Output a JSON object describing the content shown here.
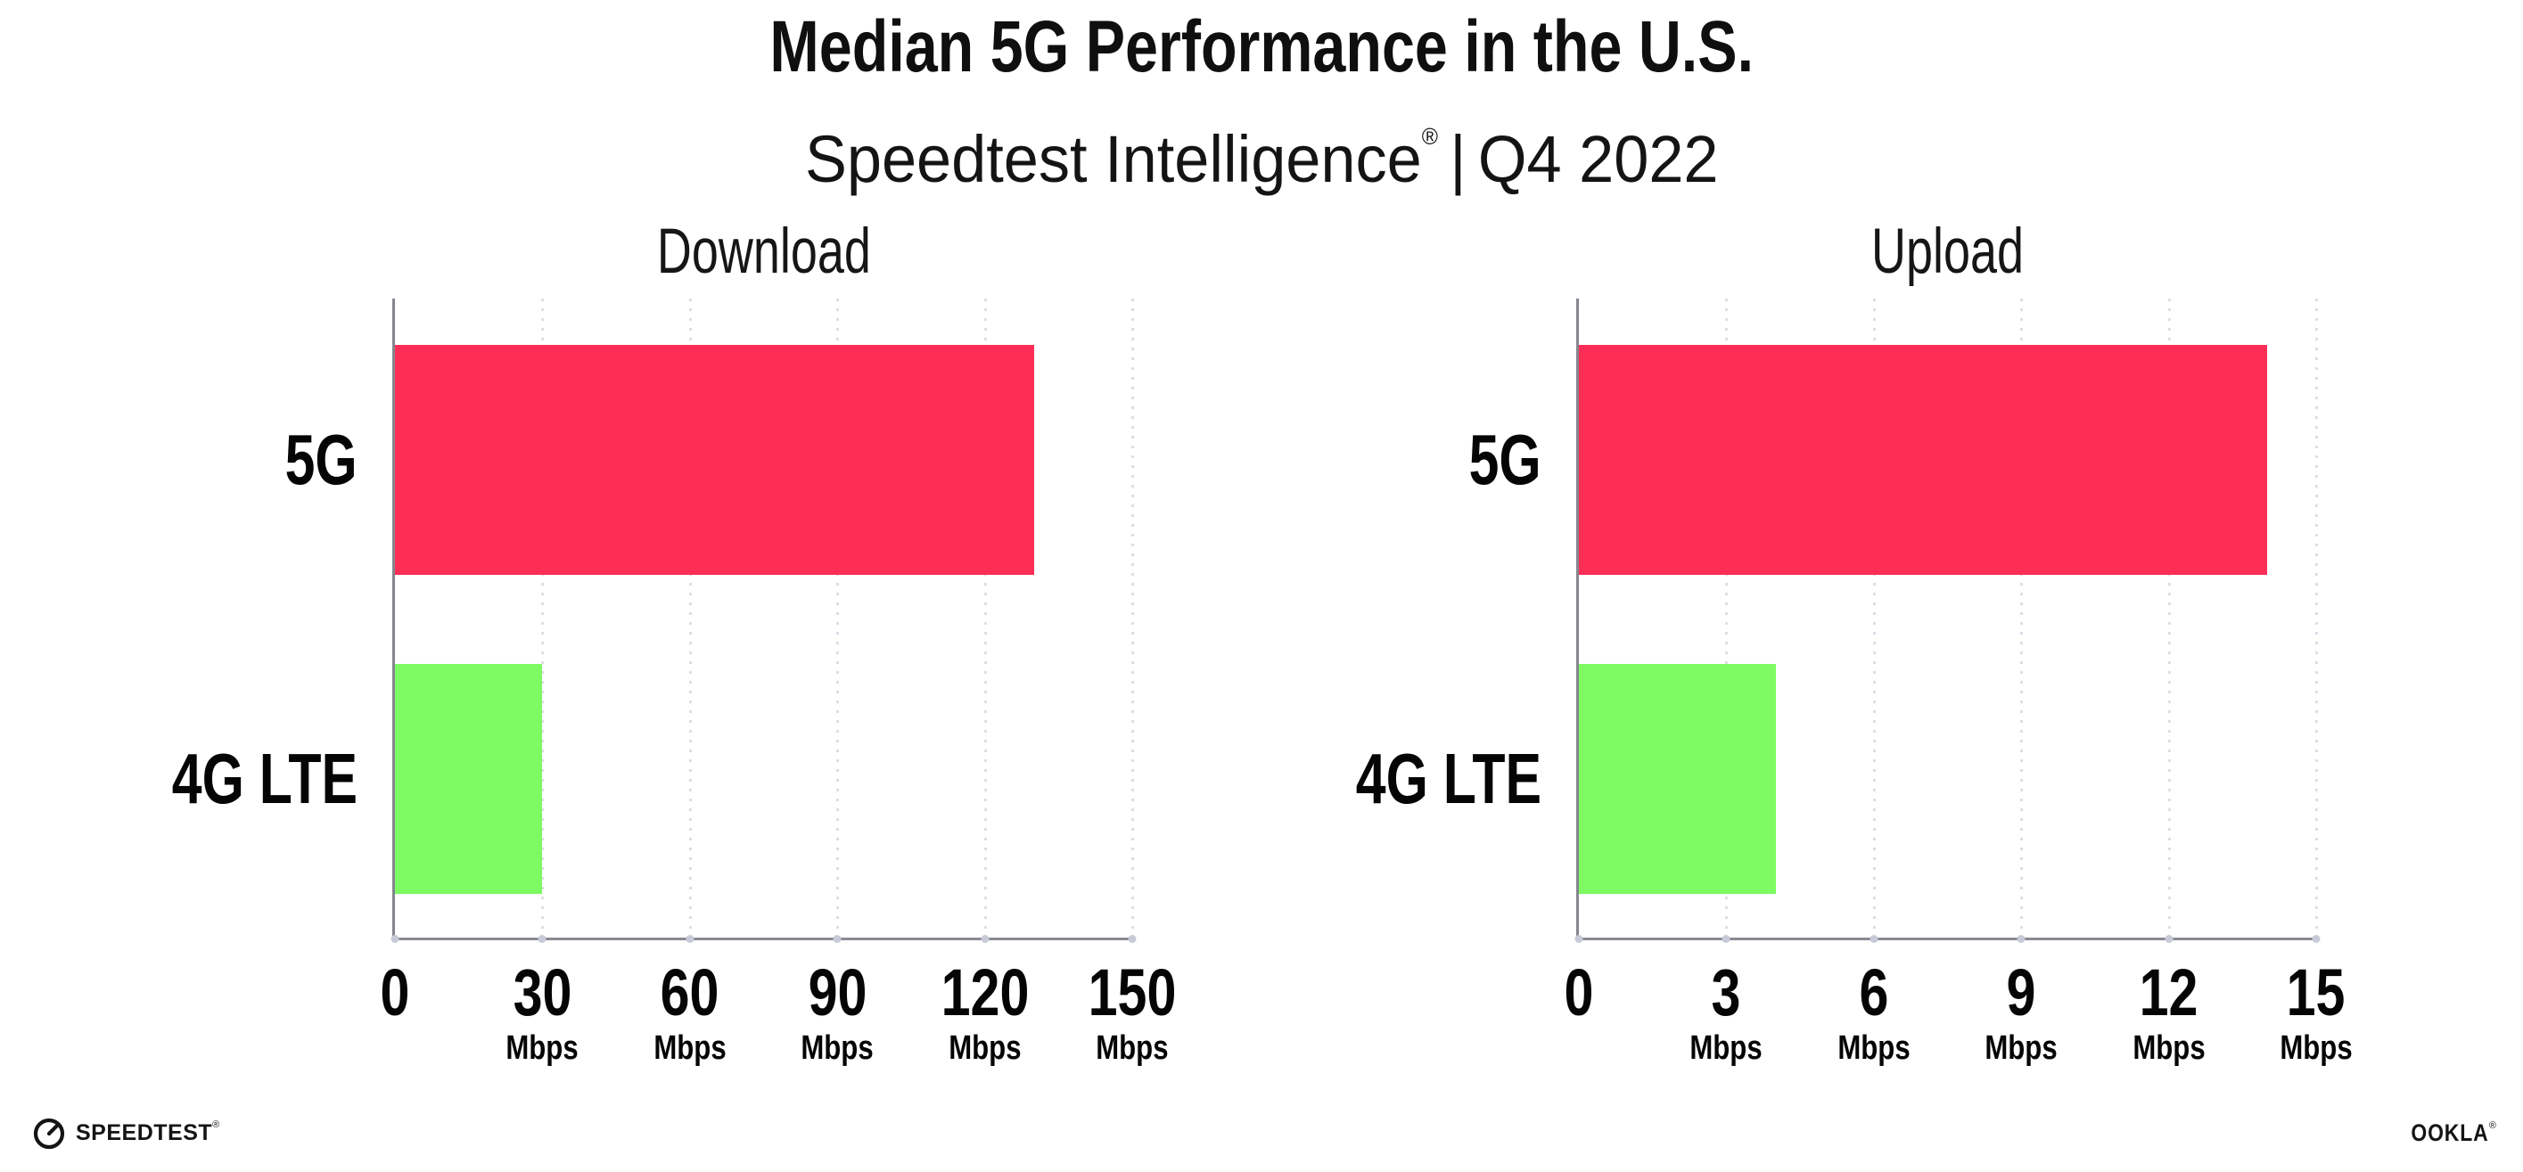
{
  "header": {
    "title": "Median 5G Performance in the U.S.",
    "subtitle": {
      "brand": "Speedtest Intelligence",
      "reg_mark": "®",
      "separator": "|",
      "period": "Q4 2022"
    }
  },
  "chart_data": [
    {
      "type": "bar",
      "orientation": "horizontal",
      "title": "Download",
      "categories": [
        "5G",
        "4G LTE"
      ],
      "values": [
        130,
        30
      ],
      "unit": "Mbps",
      "xlim": [
        0,
        150
      ],
      "xticks": [
        0,
        30,
        60,
        90,
        120,
        150
      ],
      "grid": "dotted vertical gridlines at each tick",
      "legend": "none",
      "bar_colors": [
        "#FD2E55",
        "#7EFA62"
      ]
    },
    {
      "type": "bar",
      "orientation": "horizontal",
      "title": "Upload",
      "categories": [
        "5G",
        "4G LTE"
      ],
      "values": [
        14,
        4
      ],
      "unit": "Mbps",
      "xlim": [
        0,
        15
      ],
      "xticks": [
        0,
        3,
        6,
        9,
        12,
        15
      ],
      "grid": "dotted vertical gridlines at each tick",
      "legend": "none",
      "bar_colors": [
        "#FD2E55",
        "#7EFA62"
      ]
    }
  ],
  "colors": {
    "bar_5g": "#FD2E55",
    "bar_4g_lte": "#7EFA62",
    "axis": "#85858e",
    "grid_dot": "#dcdde8",
    "text": "#0f0f0f"
  },
  "footer": {
    "speedtest_label": "SPEEDTEST",
    "speedtest_mark": "®",
    "ookla_label": "OOKLA",
    "ookla_mark": "®"
  }
}
